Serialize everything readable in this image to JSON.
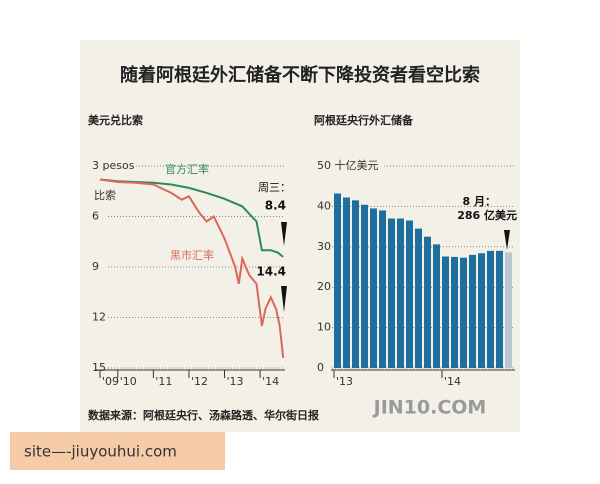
{
  "title": "随着阿根廷外汇储备不断下降投资者看空比索",
  "source": "数据来源：阿根廷央行、汤森路透、华尔街日报",
  "watermark": "JIN10.COM",
  "overlay_text": "site—-jiuyouhui.com",
  "chart_data": [
    {
      "type": "line",
      "subtitle": "美元兑比索",
      "y_unit": "比索",
      "y_inverted": true,
      "grid": true,
      "xlim": [
        2009.5,
        2014.7
      ],
      "ylim": [
        3,
        15
      ],
      "xticks": [
        {
          "value": 2009.5,
          "label": "'09"
        },
        {
          "value": 2010,
          "label": "'10"
        },
        {
          "value": 2011,
          "label": "'11"
        },
        {
          "value": 2012,
          "label": "'12"
        },
        {
          "value": 2013,
          "label": "'13"
        },
        {
          "value": 2014,
          "label": "'14"
        }
      ],
      "yticks": [
        {
          "value": 3,
          "label": "3 pesos"
        },
        6,
        9,
        12,
        15
      ],
      "annotation": "周三：",
      "series": [
        {
          "name": "官方汇率",
          "color": "#2e8b57",
          "x": [
            2009.5,
            2010,
            2010.5,
            2011,
            2011.5,
            2012,
            2012.5,
            2013,
            2013.5,
            2013.9,
            2014.05,
            2014.3,
            2014.5,
            2014.65
          ],
          "values": [
            3.8,
            3.9,
            3.95,
            4.0,
            4.1,
            4.3,
            4.6,
            4.95,
            5.4,
            6.3,
            8.0,
            8.0,
            8.15,
            8.4
          ]
        },
        {
          "name": "黑市汇率",
          "color": "#d9695a",
          "x": [
            2009.5,
            2010,
            2010.5,
            2011,
            2011.5,
            2011.8,
            2012,
            2012.3,
            2012.5,
            2012.7,
            2013,
            2013.3,
            2013.4,
            2013.5,
            2013.7,
            2013.9,
            2014.05,
            2014.15,
            2014.3,
            2014.45,
            2014.55,
            2014.65
          ],
          "values": [
            3.8,
            3.95,
            4.0,
            4.1,
            4.6,
            5.0,
            4.8,
            5.8,
            6.3,
            6.0,
            7.3,
            9.0,
            10.0,
            8.5,
            9.5,
            10.0,
            12.5,
            11.5,
            10.8,
            11.5,
            12.5,
            14.4
          ]
        }
      ]
    },
    {
      "type": "bar",
      "subtitle": "阿根廷央行外汇储备",
      "grid": true,
      "ylim": [
        0,
        50
      ],
      "yticks": [
        0,
        10,
        20,
        30,
        40,
        {
          "value": 50,
          "label": "50 十亿美元"
        }
      ],
      "annotation": "8 月：",
      "color": "#1f6f9e",
      "highlight_color": "#b8c7d4",
      "categories": [
        "'13",
        null,
        null,
        null,
        null,
        null,
        null,
        null,
        null,
        null,
        null,
        null,
        "'14",
        null,
        null,
        null,
        null,
        null,
        null,
        null
      ],
      "values": [
        43.2,
        42.2,
        41.5,
        40.4,
        39.5,
        39.0,
        37.0,
        37.0,
        36.5,
        34.5,
        32.5,
        30.6,
        27.6,
        27.5,
        27.3,
        28.0,
        28.4,
        29.0,
        29.0,
        28.6
      ],
      "value_labels": [
        null,
        null,
        null,
        null,
        null,
        null,
        null,
        null,
        null,
        null,
        null,
        null,
        null,
        null,
        null,
        null,
        null,
        null,
        null,
        "286 亿美元"
      ]
    }
  ]
}
